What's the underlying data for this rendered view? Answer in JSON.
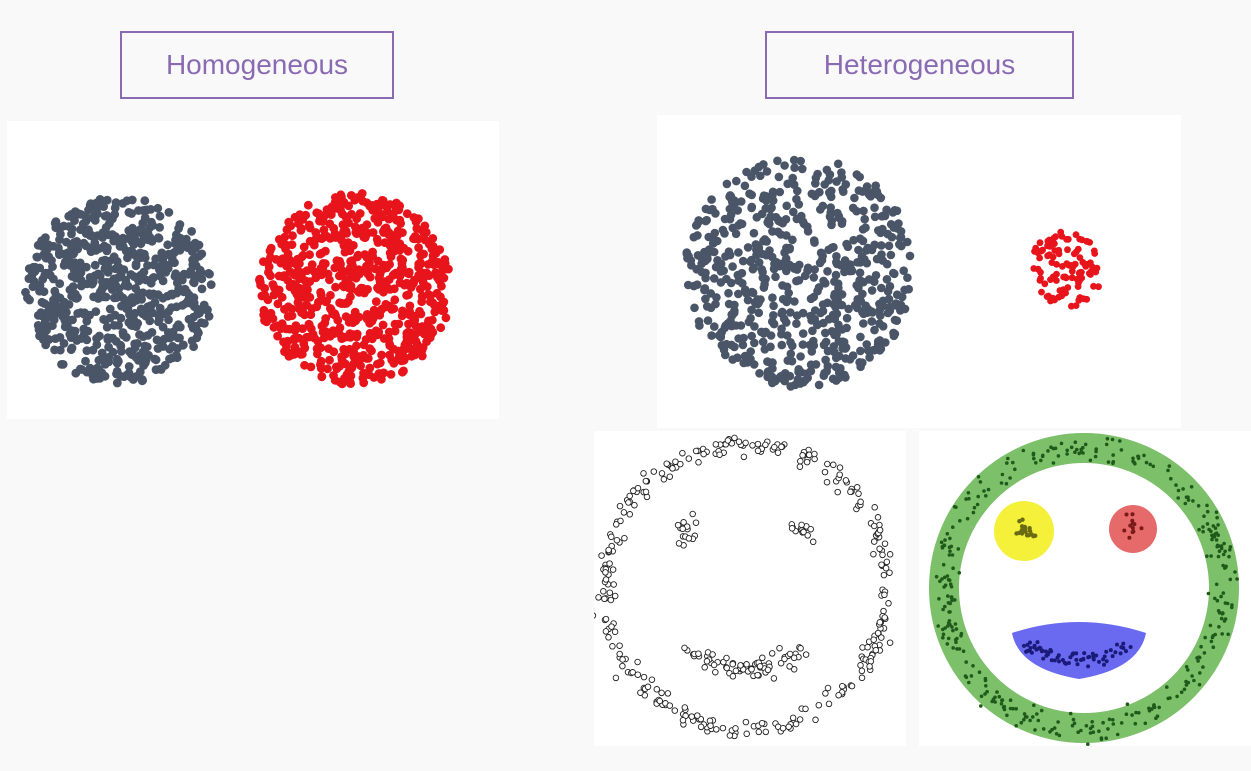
{
  "labels": {
    "homogeneous": "Homogeneous",
    "heterogeneous": "Heterogeneous"
  },
  "colors": {
    "label_border": "#8a6bb3",
    "label_text": "#8a6bb3",
    "cluster_slate": "#4a5568",
    "cluster_red": "#e8141b",
    "ring_fill": "#7cc06a",
    "ring_points": "#1f5a1a",
    "eye_left_fill": "#f5f03a",
    "eye_right_fill": "#e66a6a",
    "mouth_fill": "#6a6af0",
    "mouth_points": "#1a1a7a"
  },
  "panels": {
    "homogeneous": [
      "slate-blob",
      "red-blob"
    ],
    "heterogeneous": [
      "large-slate-blob",
      "small-red-blob"
    ],
    "smiley_raw": [
      "ring",
      "left-eye",
      "right-eye",
      "mouth"
    ],
    "smiley_clustered": [
      "ring-cluster",
      "left-eye-cluster",
      "right-eye-cluster",
      "mouth-cluster"
    ]
  }
}
